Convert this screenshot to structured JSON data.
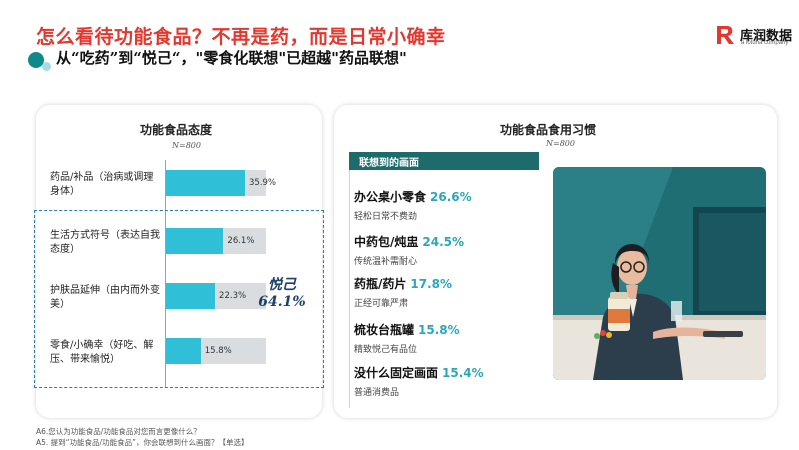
{
  "header": {
    "title": "怎么看待功能食品？不再是药，而是日常小确幸",
    "subtitle": "从“吃药”到“悦己“，\"零食化联想\"已超越\"药品联想\"",
    "logo_text": "库润数据",
    "logo_sub": "a lotuna company"
  },
  "left_panel": {
    "title": "功能食品态度",
    "n_label": "N=800",
    "highlight_label": "悦己",
    "highlight_value": "64.1%"
  },
  "right_panel": {
    "title": "功能食品食用习惯",
    "n_label": "N=800",
    "assoc_header": "联想到的画面",
    "items": [
      {
        "name": "办公桌小零食",
        "pct": "26.6%",
        "desc": "轻松日常不费劲"
      },
      {
        "name": "中药包/炖盅",
        "pct": "24.5%",
        "desc": "传统温补需耐心"
      },
      {
        "name": "药瓶/药片",
        "pct": "17.8%",
        "desc": "正经可靠严肃"
      },
      {
        "name": "梳妆台瓶罐",
        "pct": "15.8%",
        "desc": "精致悦己有品位"
      },
      {
        "name": "没什么固定画面",
        "pct": "15.4%",
        "desc": "普通消费品"
      }
    ]
  },
  "footnotes": [
    "A6.您认为功能食品/功能食品对您而言更像什么？",
    "A5. 提到“功能食品/功能食品”，你会联想到什么画面？【单选】"
  ],
  "colors": {
    "title_red": "#e1382f",
    "bar_cyan": "#2fc0d7",
    "track_gray": "#d9dde0",
    "header_teal": "#1d6b6b",
    "pct_teal": "#2aa7b8",
    "dashed_blue": "#2f7db8"
  },
  "chart_data": {
    "type": "bar",
    "orientation": "horizontal",
    "title": "功能食品态度",
    "n": "N=800",
    "categories": [
      "药品/补品（治病或调理身体）",
      "生活方式符号（表达自我态度）",
      "护肤品延伸（由内而外变美）",
      "零食/小确幸（好吃、解压、带来愉悦）"
    ],
    "values": [
      35.9,
      26.1,
      22.3,
      15.8
    ],
    "value_labels": [
      "35.9%",
      "26.1%",
      "22.3%",
      "15.8%"
    ],
    "xlim": [
      0,
      100
    ],
    "grid": false,
    "legend": "none"
  }
}
